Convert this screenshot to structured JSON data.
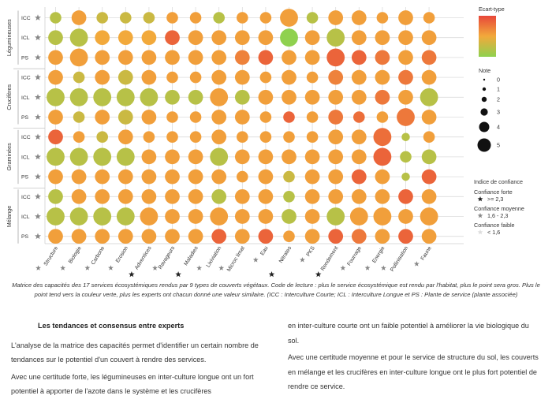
{
  "chart_data": {
    "type": "bubble-matrix",
    "title": "Matrice des capacités des 17 services écosystémiques rendus par 9 types de couverts végétaux",
    "columns": [
      "Structure",
      "Biologie",
      "Carbone",
      "Erosion",
      "Adventices",
      "Ravageurs",
      "Maladies",
      "Lixiviation",
      "Microc limat",
      "Eau",
      "Nitrates",
      "PKS",
      "Rendement",
      "Fourrage",
      "Energie",
      "Pollinisation",
      "Faune"
    ],
    "column_confidence": [
      "moyenne",
      "moyenne",
      "moyenne",
      "moyenne",
      "forte",
      "moyenne",
      "forte",
      "moyenne",
      "moyenne",
      "moyenne",
      "forte",
      "moyenne",
      "forte",
      "moyenne",
      "moyenne",
      "moyenne",
      "moyenne"
    ],
    "groups": [
      {
        "name": "Légumineuses",
        "rows": [
          "ICC",
          "ICL",
          "PS"
        ]
      },
      {
        "name": "Crucifères",
        "rows": [
          "ICC",
          "ICL",
          "PS"
        ]
      },
      {
        "name": "Graminées",
        "rows": [
          "ICC",
          "ICL",
          "PS"
        ]
      },
      {
        "name": "Mélange",
        "rows": [
          "ICC",
          "ICL",
          "PS"
        ]
      }
    ],
    "row_confidence": [
      "moyenne",
      "moyenne",
      "moyenne",
      "moyenne",
      "moyenne",
      "moyenne",
      "moyenne",
      "moyenne",
      "moyenne",
      "moyenne",
      "moyenne",
      "moyenne"
    ],
    "note": [
      [
        2,
        3,
        2,
        2,
        2,
        2,
        2,
        2,
        2,
        2,
        4,
        2,
        3,
        3,
        2,
        3,
        2
      ],
      [
        3,
        4,
        3,
        3,
        3,
        3,
        3,
        3,
        3,
        3,
        4,
        3,
        4,
        3,
        3,
        3,
        3
      ],
      [
        3,
        4,
        3,
        3,
        3,
        3,
        3,
        3,
        3,
        3,
        3,
        3,
        4,
        3,
        3,
        3,
        3
      ],
      [
        3,
        2,
        3,
        3,
        3,
        2,
        2,
        3,
        3,
        2,
        3,
        2,
        3,
        3,
        3,
        3,
        3
      ],
      [
        4,
        4,
        4,
        4,
        4,
        3,
        3,
        4,
        3,
        3,
        3,
        3,
        3,
        3,
        3,
        3,
        4
      ],
      [
        3,
        2,
        3,
        3,
        3,
        2,
        2,
        3,
        3,
        2,
        2,
        2,
        3,
        2,
        2,
        4,
        3
      ],
      [
        3,
        2,
        2,
        3,
        2,
        2,
        2,
        3,
        2,
        2,
        2,
        2,
        3,
        3,
        4,
        1,
        2
      ],
      [
        4,
        4,
        4,
        4,
        3,
        3,
        3,
        4,
        3,
        3,
        3,
        3,
        3,
        3,
        4,
        2,
        3
      ],
      [
        3,
        3,
        3,
        3,
        3,
        3,
        3,
        3,
        2,
        3,
        2,
        3,
        3,
        3,
        3,
        1,
        3
      ],
      [
        3,
        3,
        3,
        3,
        3,
        3,
        3,
        3,
        3,
        3,
        2,
        3,
        3,
        3,
        3,
        3,
        3
      ],
      [
        4,
        4,
        4,
        4,
        4,
        3,
        3,
        4,
        3,
        3,
        3,
        3,
        4,
        4,
        4,
        3,
        4
      ],
      [
        3,
        3,
        3,
        3,
        3,
        3,
        3,
        3,
        3,
        3,
        2,
        3,
        3,
        3,
        3,
        3,
        3
      ]
    ],
    "ecart_type": [
      [
        0.2,
        0.55,
        0.3,
        0.3,
        0.3,
        0.55,
        0.55,
        0.2,
        0.55,
        0.55,
        0.55,
        0.2,
        0.55,
        0.55,
        0.55,
        0.55,
        0.55
      ],
      [
        0.2,
        0.2,
        0.5,
        0.5,
        0.5,
        0.85,
        0.55,
        0.55,
        0.55,
        0.55,
        0.0,
        0.55,
        0.2,
        0.55,
        0.55,
        0.55,
        0.55
      ],
      [
        0.55,
        0.55,
        0.55,
        0.55,
        0.55,
        0.55,
        0.55,
        0.55,
        0.7,
        0.85,
        0.55,
        0.55,
        0.85,
        0.85,
        0.75,
        0.55,
        0.75
      ],
      [
        0.55,
        0.3,
        0.55,
        0.3,
        0.55,
        0.55,
        0.55,
        0.55,
        0.55,
        0.55,
        0.55,
        0.55,
        0.7,
        0.55,
        0.55,
        0.75,
        0.55
      ],
      [
        0.2,
        0.2,
        0.2,
        0.2,
        0.2,
        0.2,
        0.2,
        0.55,
        0.2,
        0.55,
        0.55,
        0.55,
        0.55,
        0.55,
        0.75,
        0.55,
        0.2
      ],
      [
        0.55,
        0.3,
        0.55,
        0.3,
        0.55,
        0.55,
        0.55,
        0.55,
        0.55,
        0.55,
        0.85,
        0.55,
        0.75,
        0.8,
        0.55,
        0.75,
        0.55
      ],
      [
        0.85,
        0.55,
        0.3,
        0.55,
        0.55,
        0.55,
        0.55,
        0.55,
        0.55,
        0.55,
        0.55,
        0.55,
        0.55,
        0.55,
        0.8,
        0.2,
        0.55
      ],
      [
        0.2,
        0.2,
        0.2,
        0.2,
        0.55,
        0.55,
        0.55,
        0.2,
        0.55,
        0.55,
        0.55,
        0.55,
        0.55,
        0.55,
        0.85,
        0.2,
        0.2
      ],
      [
        0.55,
        0.55,
        0.55,
        0.55,
        0.55,
        0.55,
        0.55,
        0.55,
        0.55,
        0.55,
        0.3,
        0.55,
        0.55,
        0.85,
        0.55,
        0.2,
        0.85
      ],
      [
        0.2,
        0.55,
        0.55,
        0.55,
        0.55,
        0.55,
        0.55,
        0.2,
        0.55,
        0.55,
        0.2,
        0.55,
        0.55,
        0.55,
        0.55,
        0.85,
        0.55
      ],
      [
        0.2,
        0.2,
        0.2,
        0.2,
        0.55,
        0.55,
        0.55,
        0.55,
        0.55,
        0.55,
        0.2,
        0.55,
        0.2,
        0.55,
        0.55,
        0.55,
        0.55
      ],
      [
        0.55,
        0.55,
        0.55,
        0.55,
        0.55,
        0.55,
        0.55,
        0.85,
        0.55,
        0.85,
        0.55,
        0.55,
        0.85,
        0.75,
        0.55,
        0.85,
        0.55
      ]
    ],
    "legend": {
      "color_title": "Ecart-type",
      "size_title": "Note",
      "size_values": [
        "0",
        "1",
        "2",
        "3",
        "4",
        "5"
      ],
      "confidence_title": "Indice de confiance",
      "confidence_items": [
        {
          "label": "Confiance forte",
          "range": ">= 2,3",
          "color": "#222222"
        },
        {
          "label": "Confiance moyenne",
          "range": "1,6 - 2,3",
          "color": "#888888"
        },
        {
          "label": "Confiance faible",
          "range": "< 1,6",
          "color": "#dddddd"
        }
      ]
    },
    "colors": {
      "low": "#8fd14f",
      "mid": "#f2a93b",
      "high": "#e8473a"
    }
  },
  "caption": "Matrice des capacités des 17 services écosystémiques rendus par 9 types de couverts végétaux. Code de lecture : plus le service écosystémique est rendu par l'habitat, plus le point sera gros. Plus le point tend vers la couleur verte, plus les experts ont chacun donné une valeur similaire. (ICC : Interculture Courte; ICL : Interculture Longue et PS : Plante de service (plante associée)",
  "article": {
    "heading": "Les tendances et consensus entre experts",
    "left_p1": "L'analyse de la matrice des capacités permet d'identifier un certain nombre de tendances sur le potentiel d'un couvert à rendre des services.",
    "left_p2": "Avec une certitude forte, les légumineuses en inter-culture longue ont un fort potentiel à apporter de l'azote dans le système et les crucifères",
    "right_p1": "en inter-culture courte ont un faible potentiel à améliorer la vie biologique du sol.",
    "right_p2": "Avec une certitude moyenne et pour le service de structure du sol, les couverts en mélange et les crucifères en inter-culture longue ont le plus fort potentiel de rendre ce service."
  }
}
